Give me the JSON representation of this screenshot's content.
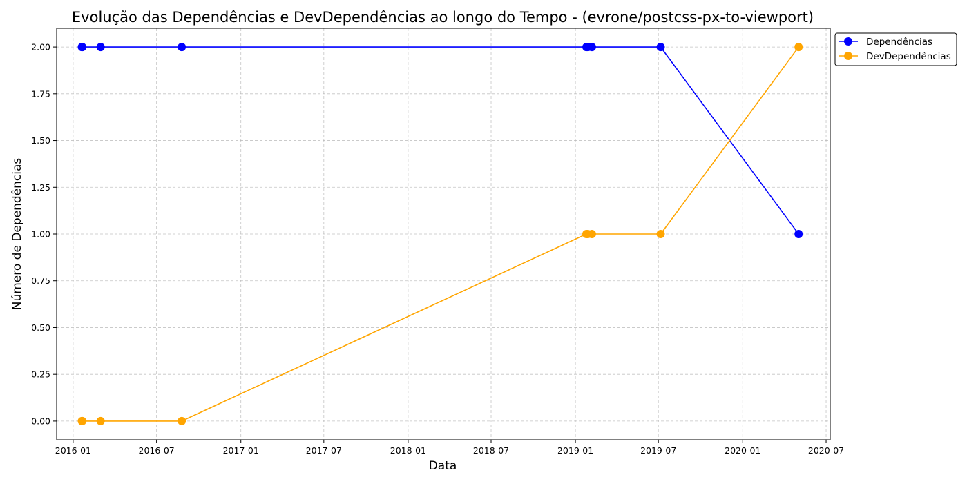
{
  "chart_data": {
    "type": "line",
    "title": "Evolução das Dependências e DevDependências ao longo do Tempo - (evrone/postcss-px-to-viewport)",
    "xlabel": "Data",
    "ylabel": "Número de Dependências",
    "x_axis_type": "date",
    "xlim": [
      "2015-11-26",
      "2020-07-10"
    ],
    "ylim": [
      -0.1,
      2.1
    ],
    "x_ticks": [
      "2016-01",
      "2016-07",
      "2017-01",
      "2017-07",
      "2018-01",
      "2018-07",
      "2019-01",
      "2019-07",
      "2020-01",
      "2020-07"
    ],
    "y_ticks": [
      "0.00",
      "0.25",
      "0.50",
      "0.75",
      "1.00",
      "1.25",
      "1.50",
      "1.75",
      "2.00"
    ],
    "grid": true,
    "grid_style": "dashed",
    "legend_position": "upper right, outside plot area",
    "x": [
      "2016-01-20",
      "2016-01-21",
      "2016-03-01",
      "2016-08-25",
      "2019-01-25",
      "2019-01-28",
      "2019-02-06",
      "2019-07-06",
      "2020-05-02"
    ],
    "series": [
      {
        "name": "Dependências",
        "color": "#0000ff",
        "marker": "circle",
        "values": [
          2,
          2,
          2,
          2,
          2,
          2,
          2,
          2,
          1
        ]
      },
      {
        "name": "DevDependências",
        "color": "#ffa500",
        "marker": "circle",
        "values": [
          0,
          0,
          0,
          0,
          1,
          1,
          1,
          1,
          2
        ]
      }
    ]
  }
}
